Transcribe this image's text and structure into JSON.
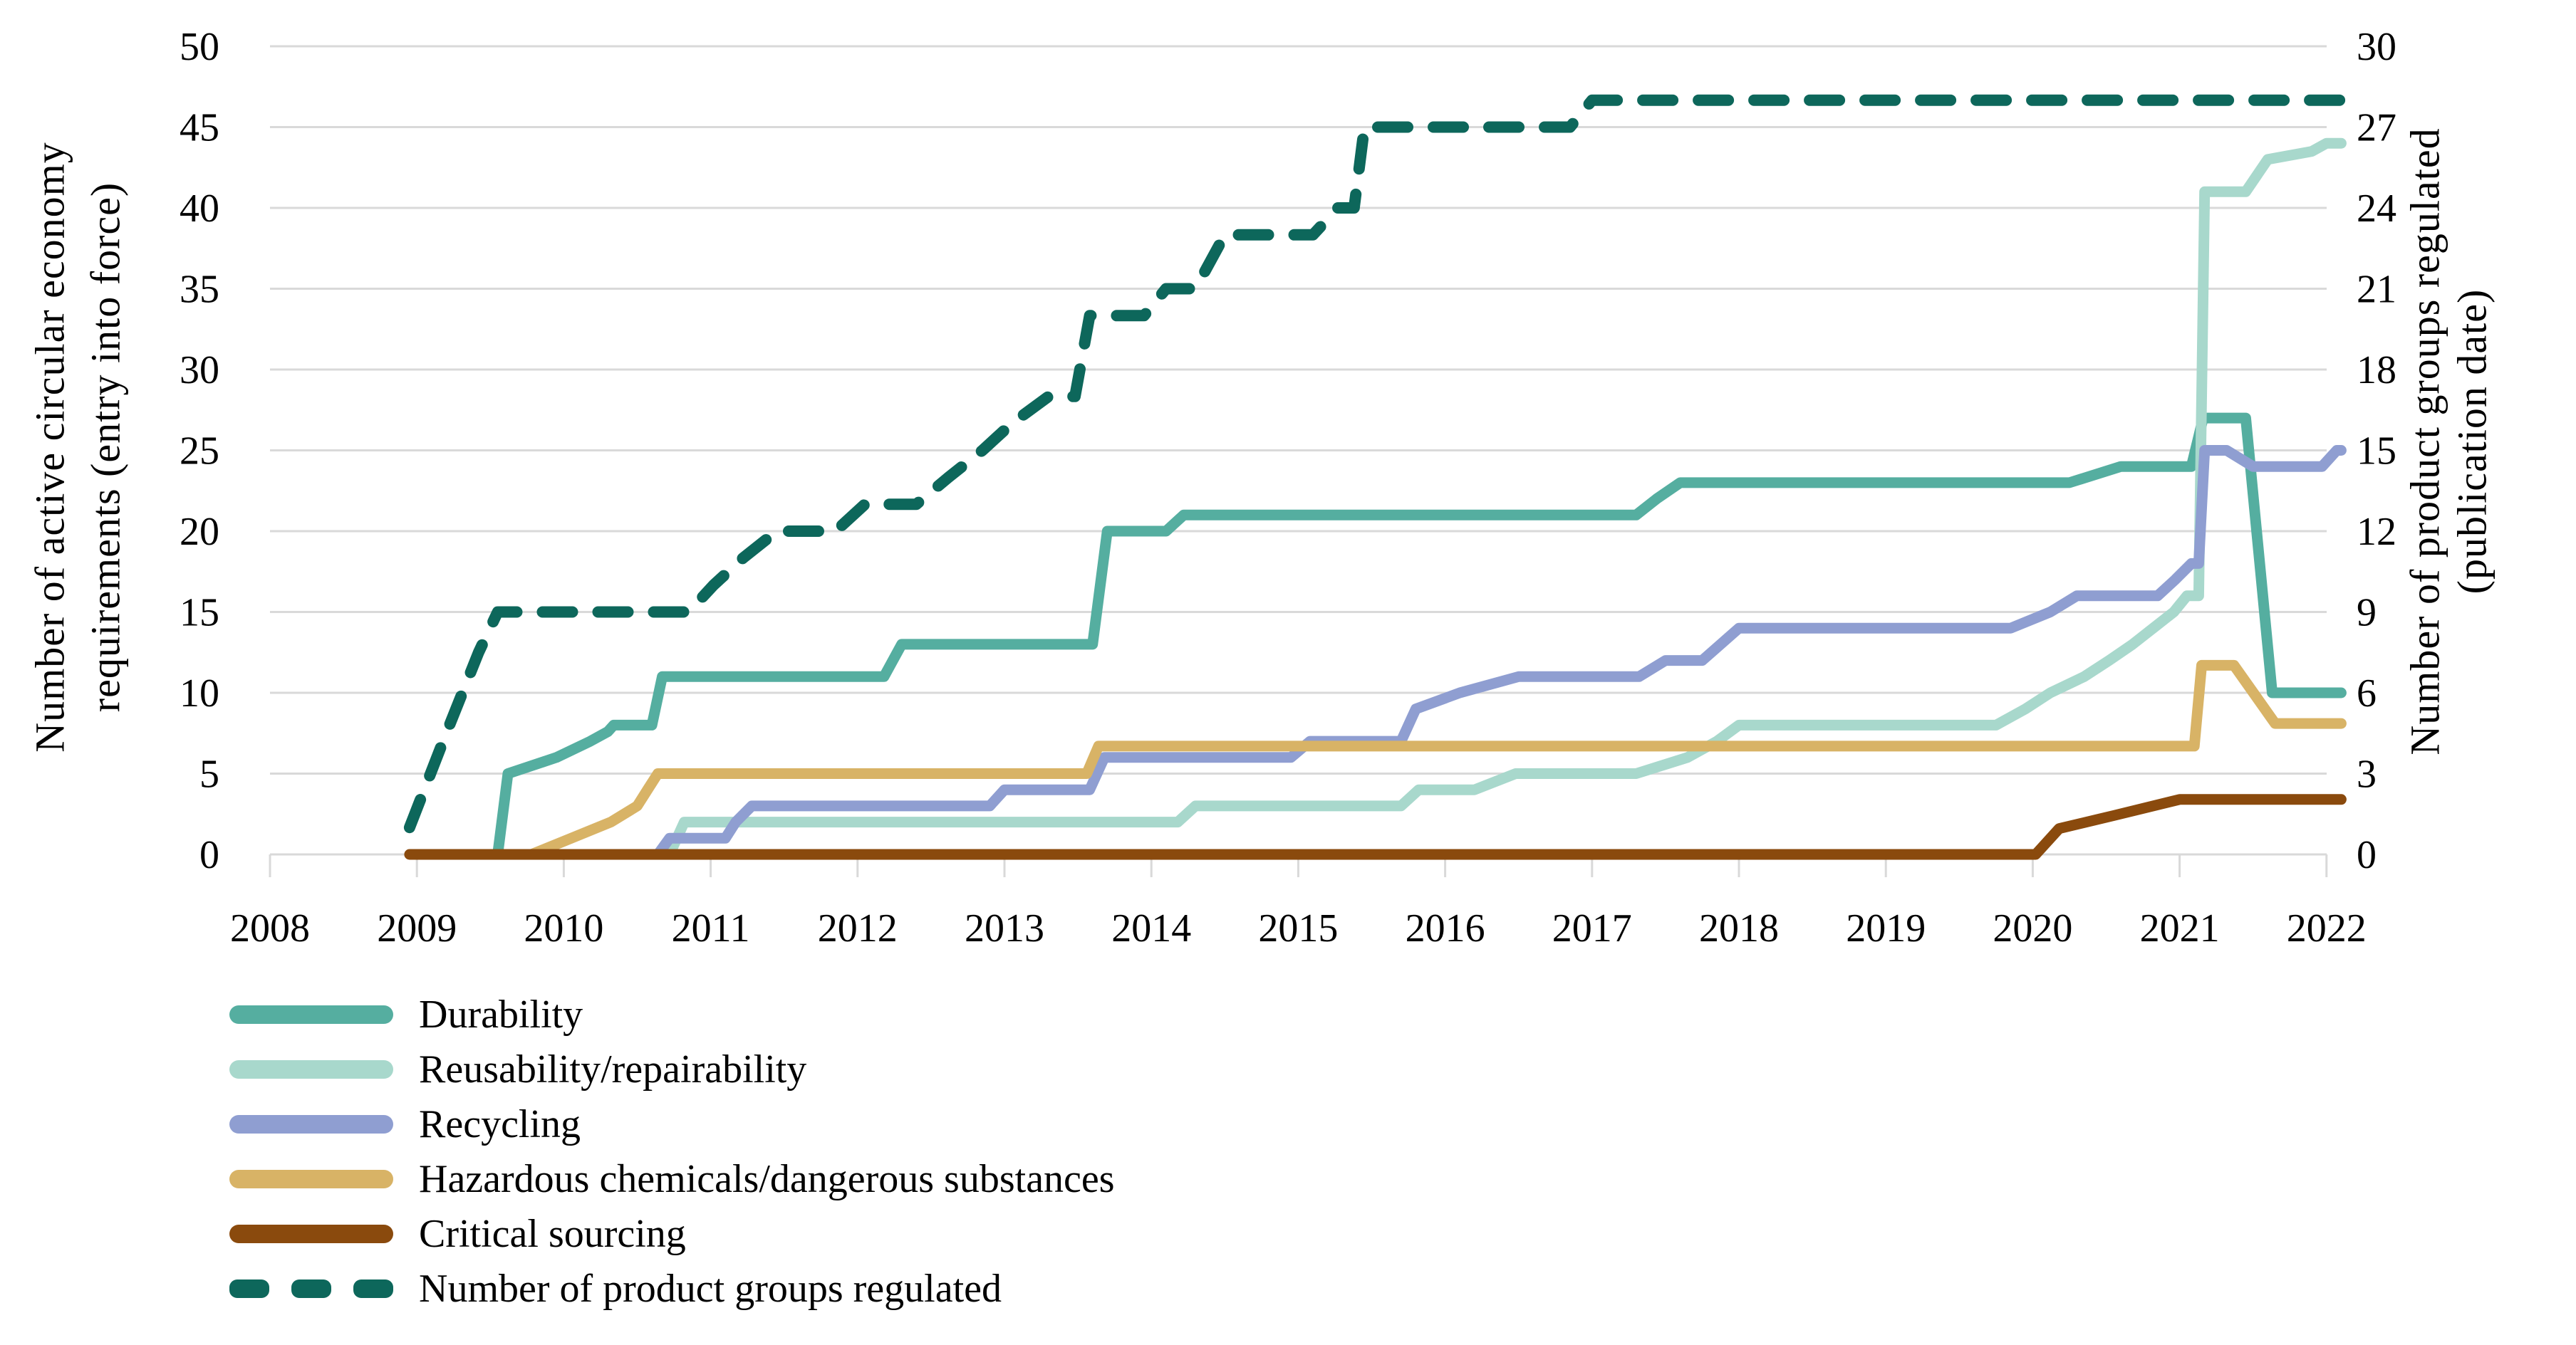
{
  "chart_data": {
    "type": "line",
    "title": "",
    "grid": true,
    "background": "#ffffff",
    "grid_color": "#d9d9d9",
    "axis_color": "#d9d9d9",
    "text_color": "#000000",
    "x": {
      "label": "",
      "min": 2008,
      "max": 2022.15,
      "ticks": [
        2008,
        2009,
        2010,
        2011,
        2012,
        2013,
        2014,
        2015,
        2016,
        2017,
        2018,
        2019,
        2020,
        2021,
        2022
      ]
    },
    "y_left": {
      "label_line1": "Number of active circular economy",
      "label_line2": "requirements (entry into force)",
      "min": 0,
      "max": 50,
      "ticks": [
        0,
        5,
        10,
        15,
        20,
        25,
        30,
        35,
        40,
        45,
        50
      ]
    },
    "y_right": {
      "label_line1": "Number of  product groups regulated",
      "label_line2": "(publication date)",
      "min": 0,
      "max": 30,
      "ticks": [
        0,
        3,
        6,
        9,
        12,
        15,
        18,
        21,
        24,
        27,
        30
      ]
    },
    "legend_position": "bottom-left",
    "series": [
      {
        "name": "Durability",
        "axis": "left",
        "dashed": false,
        "color": "#55aea0",
        "points": [
          [
            2009.55,
            0
          ],
          [
            2009.62,
            5
          ],
          [
            2009.95,
            6
          ],
          [
            2010.18,
            7
          ],
          [
            2010.3,
            7.6
          ],
          [
            2010.34,
            8
          ],
          [
            2010.6,
            8
          ],
          [
            2010.67,
            11
          ],
          [
            2012.18,
            11
          ],
          [
            2012.3,
            13
          ],
          [
            2013.6,
            13
          ],
          [
            2013.7,
            20
          ],
          [
            2014.1,
            20
          ],
          [
            2014.22,
            21
          ],
          [
            2017.3,
            21
          ],
          [
            2017.44,
            22
          ],
          [
            2017.6,
            23
          ],
          [
            2020.25,
            23
          ],
          [
            2020.6,
            24
          ],
          [
            2021.08,
            24
          ],
          [
            2021.16,
            27
          ],
          [
            2021.45,
            27
          ],
          [
            2021.63,
            10
          ],
          [
            2022.1,
            10
          ]
        ]
      },
      {
        "name": "Reusability/repairability",
        "axis": "left",
        "dashed": false,
        "color": "#a8d8cc",
        "points": [
          [
            2010.72,
            0
          ],
          [
            2010.82,
            2
          ],
          [
            2014.18,
            2
          ],
          [
            2014.3,
            3
          ],
          [
            2015.7,
            3
          ],
          [
            2015.82,
            4
          ],
          [
            2016.2,
            4
          ],
          [
            2016.48,
            5
          ],
          [
            2017.3,
            5
          ],
          [
            2017.65,
            6
          ],
          [
            2017.85,
            7
          ],
          [
            2018.0,
            8
          ],
          [
            2019.75,
            8
          ],
          [
            2019.95,
            9
          ],
          [
            2020.12,
            10
          ],
          [
            2020.35,
            11
          ],
          [
            2020.52,
            12
          ],
          [
            2020.68,
            13
          ],
          [
            2020.82,
            14
          ],
          [
            2020.96,
            15
          ],
          [
            2021.05,
            16
          ],
          [
            2021.13,
            16
          ],
          [
            2021.17,
            41
          ],
          [
            2021.45,
            41
          ],
          [
            2021.6,
            43
          ],
          [
            2021.9,
            43.5
          ],
          [
            2022.0,
            44
          ],
          [
            2022.1,
            44
          ]
        ]
      },
      {
        "name": "Recycling",
        "axis": "left",
        "dashed": false,
        "color": "#8f9ed1",
        "points": [
          [
            2010.64,
            0
          ],
          [
            2010.72,
            1
          ],
          [
            2011.1,
            1
          ],
          [
            2011.17,
            2
          ],
          [
            2011.28,
            3
          ],
          [
            2012.9,
            3
          ],
          [
            2013.0,
            4
          ],
          [
            2013.58,
            4
          ],
          [
            2013.68,
            6
          ],
          [
            2014.95,
            6
          ],
          [
            2015.08,
            7
          ],
          [
            2015.7,
            7
          ],
          [
            2015.8,
            9
          ],
          [
            2016.1,
            10
          ],
          [
            2016.5,
            11
          ],
          [
            2017.32,
            11
          ],
          [
            2017.5,
            12
          ],
          [
            2017.75,
            12
          ],
          [
            2018.0,
            14
          ],
          [
            2019.85,
            14
          ],
          [
            2020.12,
            15
          ],
          [
            2020.3,
            16
          ],
          [
            2020.85,
            16
          ],
          [
            2020.97,
            17
          ],
          [
            2021.08,
            18
          ],
          [
            2021.13,
            18
          ],
          [
            2021.17,
            25
          ],
          [
            2021.32,
            25
          ],
          [
            2021.5,
            24
          ],
          [
            2021.97,
            24
          ],
          [
            2022.07,
            25
          ],
          [
            2022.1,
            25
          ]
        ]
      },
      {
        "name": "Hazardous chemicals/dangerous substances",
        "axis": "left",
        "dashed": false,
        "color": "#d8b366",
        "points": [
          [
            2009.78,
            0
          ],
          [
            2010.05,
            1
          ],
          [
            2010.32,
            2
          ],
          [
            2010.5,
            3
          ],
          [
            2010.57,
            4
          ],
          [
            2010.64,
            5
          ],
          [
            2013.56,
            5
          ],
          [
            2013.64,
            6.7
          ],
          [
            2021.1,
            6.7
          ],
          [
            2021.15,
            11.7
          ],
          [
            2021.37,
            11.7
          ],
          [
            2021.65,
            8.1
          ],
          [
            2022.1,
            8.1
          ]
        ]
      },
      {
        "name": "Critical sourcing",
        "axis": "left",
        "dashed": false,
        "color": "#8a4a0d",
        "points": [
          [
            2008.95,
            0
          ],
          [
            2020.02,
            0
          ],
          [
            2020.18,
            1.6
          ],
          [
            2020.55,
            2.4
          ],
          [
            2021.0,
            3.4
          ],
          [
            2022.1,
            3.4
          ]
        ]
      },
      {
        "name": "Number of product groups regulated",
        "axis": "right",
        "dashed": true,
        "color": "#0d675b",
        "points": [
          [
            2008.95,
            1
          ],
          [
            2009.2,
            4.5
          ],
          [
            2009.42,
            7.5
          ],
          [
            2009.55,
            9
          ],
          [
            2010.85,
            9
          ],
          [
            2011.02,
            10
          ],
          [
            2011.22,
            11
          ],
          [
            2011.45,
            12
          ],
          [
            2011.85,
            12
          ],
          [
            2012.05,
            13
          ],
          [
            2012.4,
            13
          ],
          [
            2012.62,
            14
          ],
          [
            2012.85,
            15
          ],
          [
            2013.05,
            16
          ],
          [
            2013.3,
            17
          ],
          [
            2013.48,
            17
          ],
          [
            2013.58,
            20
          ],
          [
            2013.95,
            20
          ],
          [
            2014.1,
            21
          ],
          [
            2014.3,
            21
          ],
          [
            2014.5,
            23
          ],
          [
            2015.1,
            23
          ],
          [
            2015.27,
            24
          ],
          [
            2015.38,
            24
          ],
          [
            2015.45,
            27
          ],
          [
            2016.85,
            27
          ],
          [
            2017.0,
            28
          ],
          [
            2022.12,
            28
          ]
        ]
      }
    ]
  }
}
